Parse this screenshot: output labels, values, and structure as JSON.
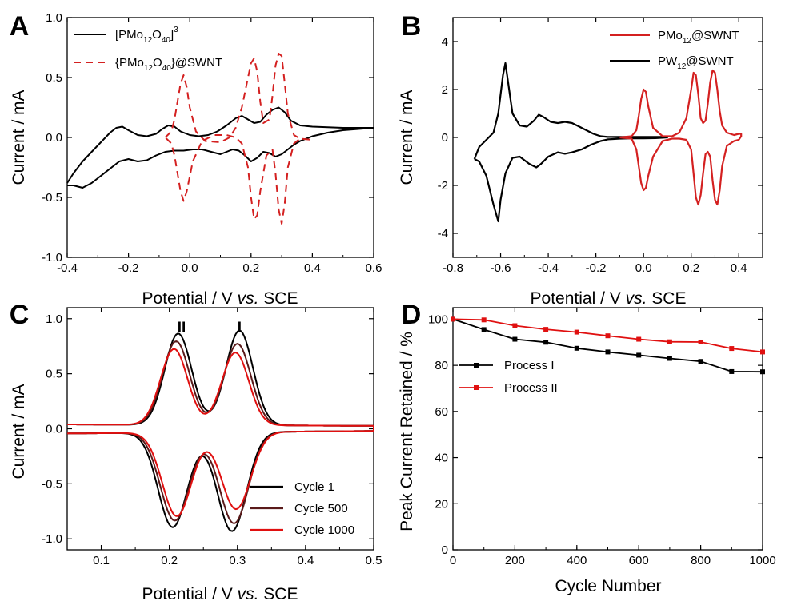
{
  "figure": {
    "colors": {
      "black": "#000000",
      "red": "#d42020",
      "darkred": "#5a1a1a",
      "red2": "#e01010"
    }
  },
  "chart_data": [
    {
      "panel": "A",
      "type": "line",
      "xlabel_main": "Potential / V ",
      "xlabel_italic": "vs.",
      "xlabel_end": " SCE",
      "ylabel": "Current / mA",
      "xlim": [
        -0.4,
        0.6
      ],
      "ylim": [
        -1.0,
        1.0
      ],
      "xticks": [
        "-0.4",
        "-0.2",
        "0.0",
        "0.2",
        "0.4",
        "0.6"
      ],
      "yticks": [
        "-1.0",
        "-0.5",
        "0.0",
        "0.5",
        "1.0"
      ],
      "legend": [
        {
          "label": "[PMo12O40]3",
          "style": "solid",
          "color": "#000000"
        },
        {
          "label": "{PMo12O40}@SWNT",
          "style": "dashed",
          "color": "#d42020"
        }
      ],
      "series": [
        {
          "name": "[PMo12O40]3",
          "style": "solid",
          "color": "#000000",
          "x": [
            -0.4,
            -0.38,
            -0.35,
            -0.32,
            -0.29,
            -0.26,
            -0.24,
            -0.22,
            -0.2,
            -0.17,
            -0.14,
            -0.11,
            -0.09,
            -0.07,
            -0.05,
            -0.03,
            0.0,
            0.03,
            0.06,
            0.09,
            0.12,
            0.15,
            0.17,
            0.19,
            0.21,
            0.23,
            0.25,
            0.27,
            0.29,
            0.31,
            0.33,
            0.36,
            0.4,
            0.45,
            0.5,
            0.55,
            0.6,
            0.6,
            0.55,
            0.5,
            0.45,
            0.4,
            0.36,
            0.34,
            0.32,
            0.3,
            0.28,
            0.26,
            0.24,
            0.22,
            0.2,
            0.18,
            0.16,
            0.14,
            0.12,
            0.1,
            0.07,
            0.04,
            0.01,
            -0.02,
            -0.05,
            -0.08,
            -0.11,
            -0.14,
            -0.17,
            -0.2,
            -0.23,
            -0.26,
            -0.29,
            -0.32,
            -0.35,
            -0.38,
            -0.4
          ],
          "y": [
            -0.38,
            -0.3,
            -0.2,
            -0.12,
            -0.04,
            0.04,
            0.08,
            0.09,
            0.06,
            0.02,
            0.01,
            0.03,
            0.07,
            0.1,
            0.09,
            0.05,
            0.02,
            0.01,
            0.02,
            0.05,
            0.1,
            0.16,
            0.18,
            0.15,
            0.12,
            0.13,
            0.19,
            0.23,
            0.25,
            0.21,
            0.14,
            0.1,
            0.09,
            0.085,
            0.08,
            0.08,
            0.08,
            0.08,
            0.07,
            0.06,
            0.04,
            0.01,
            -0.03,
            -0.06,
            -0.1,
            -0.14,
            -0.16,
            -0.13,
            -0.12,
            -0.17,
            -0.2,
            -0.15,
            -0.11,
            -0.1,
            -0.12,
            -0.14,
            -0.12,
            -0.1,
            -0.1,
            -0.11,
            -0.11,
            -0.12,
            -0.15,
            -0.19,
            -0.2,
            -0.18,
            -0.2,
            -0.26,
            -0.32,
            -0.38,
            -0.42,
            -0.4,
            -0.4
          ]
        },
        {
          "name": "{PMo12O40}@SWNT",
          "style": "dashed",
          "color": "#d42020",
          "x": [
            -0.08,
            -0.06,
            -0.05,
            -0.04,
            -0.03,
            -0.02,
            -0.01,
            0.0,
            0.02,
            0.05,
            0.1,
            0.13,
            0.15,
            0.17,
            0.19,
            0.2,
            0.21,
            0.22,
            0.23,
            0.24,
            0.26,
            0.27,
            0.28,
            0.29,
            0.3,
            0.31,
            0.32,
            0.34,
            0.36,
            0.4,
            0.4,
            0.36,
            0.34,
            0.32,
            0.31,
            0.3,
            0.29,
            0.28,
            0.27,
            0.25,
            0.23,
            0.22,
            0.21,
            0.2,
            0.19,
            0.17,
            0.15,
            0.12,
            0.08,
            0.04,
            0.01,
            -0.01,
            -0.02,
            -0.03,
            -0.04,
            -0.05,
            -0.06,
            -0.08
          ],
          "y": [
            0.0,
            0.05,
            0.15,
            0.3,
            0.45,
            0.52,
            0.42,
            0.25,
            0.05,
            -0.03,
            -0.04,
            0.0,
            0.08,
            0.25,
            0.5,
            0.62,
            0.66,
            0.55,
            0.3,
            0.12,
            0.15,
            0.35,
            0.6,
            0.7,
            0.68,
            0.45,
            0.2,
            0.02,
            -0.01,
            -0.02,
            -0.02,
            -0.01,
            -0.05,
            -0.25,
            -0.55,
            -0.72,
            -0.6,
            -0.3,
            -0.1,
            -0.15,
            -0.45,
            -0.65,
            -0.68,
            -0.5,
            -0.25,
            -0.05,
            0.0,
            0.02,
            0.02,
            -0.03,
            -0.2,
            -0.45,
            -0.53,
            -0.45,
            -0.3,
            -0.15,
            -0.05,
            0.0
          ]
        }
      ]
    },
    {
      "panel": "B",
      "type": "line",
      "xlabel_main": "Potential / V ",
      "xlabel_italic": "vs.",
      "xlabel_end": " SCE",
      "ylabel": "Current / mA",
      "xlim": [
        -0.8,
        0.5
      ],
      "ylim": [
        -5,
        5
      ],
      "xticks": [
        "-0.8",
        "-0.6",
        "-0.4",
        "-0.2",
        "0.0",
        "0.2",
        "0.4"
      ],
      "yticks": [
        "-4",
        "-2",
        "0",
        "2",
        "4"
      ],
      "legend": [
        {
          "label": "PMo12@SWNT",
          "style": "solid",
          "color": "#d42020"
        },
        {
          "label": "PW12@SWNT",
          "style": "solid",
          "color": "#000000"
        }
      ],
      "series": [
        {
          "name": "PW12@SWNT",
          "style": "solid",
          "color": "#000000",
          "x": [
            -0.71,
            -0.69,
            -0.66,
            -0.63,
            -0.61,
            -0.59,
            -0.58,
            -0.57,
            -0.55,
            -0.52,
            -0.49,
            -0.46,
            -0.44,
            -0.42,
            -0.39,
            -0.36,
            -0.33,
            -0.3,
            -0.27,
            -0.24,
            -0.21,
            -0.18,
            -0.15,
            -0.1,
            -0.05,
            0.0,
            0.05,
            0.1,
            0.1,
            0.05,
            0.0,
            -0.05,
            -0.1,
            -0.15,
            -0.18,
            -0.22,
            -0.26,
            -0.3,
            -0.33,
            -0.36,
            -0.4,
            -0.43,
            -0.45,
            -0.48,
            -0.52,
            -0.55,
            -0.58,
            -0.6,
            -0.61,
            -0.63,
            -0.66,
            -0.69,
            -0.71
          ],
          "y": [
            -0.9,
            -0.4,
            -0.1,
            0.2,
            1.0,
            2.6,
            3.1,
            2.4,
            1.0,
            0.5,
            0.45,
            0.7,
            0.95,
            0.85,
            0.65,
            0.6,
            0.65,
            0.6,
            0.45,
            0.3,
            0.15,
            0.05,
            0.02,
            0.02,
            0.02,
            0.02,
            0.02,
            0.02,
            0.0,
            -0.03,
            -0.04,
            -0.04,
            -0.05,
            -0.08,
            -0.15,
            -0.3,
            -0.5,
            -0.62,
            -0.68,
            -0.62,
            -0.8,
            -1.1,
            -1.25,
            -1.1,
            -0.8,
            -0.85,
            -1.5,
            -2.6,
            -3.5,
            -2.8,
            -1.6,
            -1.0,
            -0.9
          ]
        },
        {
          "name": "PMo12@SWNT",
          "style": "solid",
          "color": "#d42020",
          "x": [
            -0.1,
            -0.05,
            -0.03,
            -0.02,
            -0.01,
            0.0,
            0.01,
            0.02,
            0.04,
            0.08,
            0.12,
            0.15,
            0.18,
            0.2,
            0.21,
            0.22,
            0.23,
            0.24,
            0.25,
            0.26,
            0.27,
            0.28,
            0.29,
            0.3,
            0.31,
            0.32,
            0.33,
            0.35,
            0.38,
            0.4,
            0.41,
            0.41,
            0.4,
            0.38,
            0.35,
            0.33,
            0.32,
            0.31,
            0.3,
            0.29,
            0.28,
            0.27,
            0.26,
            0.25,
            0.24,
            0.23,
            0.22,
            0.21,
            0.2,
            0.18,
            0.15,
            0.12,
            0.08,
            0.04,
            0.02,
            0.01,
            0.0,
            -0.01,
            -0.02,
            -0.03,
            -0.05,
            -0.1
          ],
          "y": [
            0.0,
            0.05,
            0.3,
            0.9,
            1.6,
            2.0,
            1.9,
            1.3,
            0.4,
            0.05,
            0.05,
            0.2,
            0.8,
            2.0,
            2.7,
            2.6,
            1.8,
            0.8,
            0.6,
            0.7,
            1.4,
            2.3,
            2.8,
            2.7,
            2.0,
            1.1,
            0.5,
            0.2,
            0.1,
            0.15,
            0.15,
            0.05,
            -0.1,
            -0.15,
            -0.35,
            -1.2,
            -2.2,
            -2.8,
            -2.6,
            -1.8,
            -0.8,
            -0.6,
            -0.7,
            -1.5,
            -2.4,
            -2.8,
            -2.5,
            -1.5,
            -0.5,
            -0.1,
            -0.05,
            -0.05,
            -0.15,
            -0.8,
            -1.6,
            -2.1,
            -2.2,
            -1.9,
            -1.2,
            -0.5,
            -0.05,
            0.0
          ]
        }
      ]
    },
    {
      "panel": "C",
      "type": "line",
      "xlabel_main": "Potential / V ",
      "xlabel_italic": "vs.",
      "xlabel_end": " SCE",
      "ylabel": "Current / mA",
      "xlim": [
        0.05,
        0.5
      ],
      "ylim": [
        -1.1,
        1.1
      ],
      "xticks": [
        "0.1",
        "0.2",
        "0.3",
        "0.4",
        "0.5"
      ],
      "yticks": [
        "-1.0",
        "-0.5",
        "0.0",
        "0.5",
        "1.0"
      ],
      "peak_labels": [
        "II",
        "I"
      ],
      "legend": [
        {
          "label": "Cycle 1",
          "style": "solid",
          "color": "#000000"
        },
        {
          "label": "Cycle 500",
          "style": "solid",
          "color": "#5a1a1a"
        },
        {
          "label": "Cycle 1000",
          "style": "solid",
          "color": "#e01010"
        }
      ],
      "series": [
        {
          "name": "Cycle 1",
          "color": "#000000",
          "ox": 0.0,
          "amp_ox": [
            0.83,
            0.86
          ],
          "amp_red": [
            -0.86,
            -0.9
          ]
        },
        {
          "name": "Cycle 500",
          "color": "#5a1a1a",
          "ox": -0.003,
          "amp_ox": [
            0.76,
            0.74
          ],
          "amp_red": [
            -0.8,
            -0.83
          ]
        },
        {
          "name": "Cycle 1000",
          "color": "#e01010",
          "ox": -0.006,
          "amp_ox": [
            0.69,
            0.66
          ],
          "amp_red": [
            -0.76,
            -0.7
          ]
        }
      ]
    },
    {
      "panel": "D",
      "type": "line",
      "xlabel": "Cycle Number",
      "ylabel": "Peak Current Retained / %",
      "xlim": [
        0,
        1000
      ],
      "ylim": [
        0,
        105
      ],
      "xticks": [
        "0",
        "200",
        "400",
        "600",
        "800",
        "1000"
      ],
      "yticks": [
        "0",
        "20",
        "40",
        "60",
        "80",
        "100"
      ],
      "x": [
        0,
        100,
        200,
        300,
        400,
        500,
        600,
        700,
        800,
        900,
        1000
      ],
      "series": [
        {
          "name": "Process I",
          "color": "#000000",
          "values": [
            100,
            95.5,
            91.3,
            90,
            87.4,
            85.8,
            84.4,
            83,
            81.7,
            77.3,
            77.2
          ]
        },
        {
          "name": "Process II",
          "color": "#e01010",
          "values": [
            100,
            99.7,
            97.2,
            95.6,
            94.4,
            92.8,
            91.3,
            90.2,
            90.1,
            87.3,
            85.8
          ]
        }
      ]
    }
  ]
}
